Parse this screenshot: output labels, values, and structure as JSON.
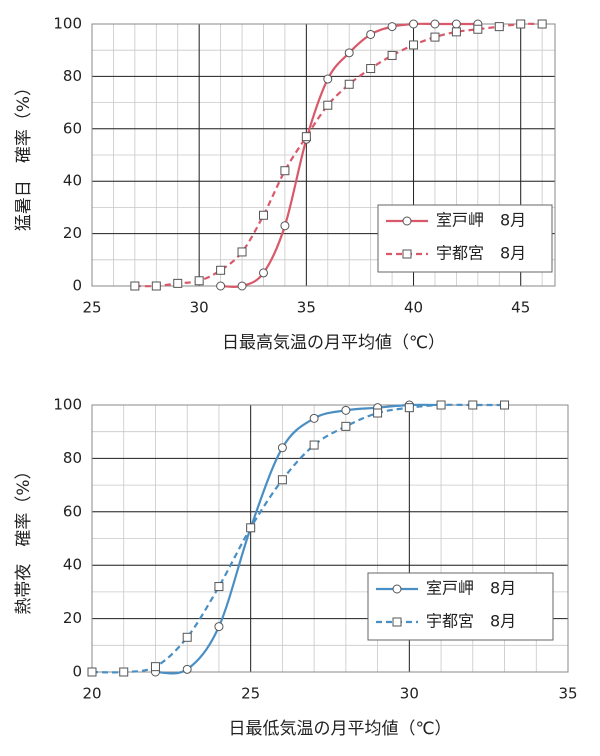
{
  "chart_data": [
    {
      "type": "line",
      "y_label": "猛暑日　確率（%）",
      "x_label": "日最高気温の月平均値（℃）",
      "xlim": [
        25,
        46.6
      ],
      "xticks": [
        25,
        30,
        35,
        40,
        45
      ],
      "ylim": [
        0,
        100
      ],
      "yticks": [
        0,
        20,
        40,
        60,
        80,
        100
      ],
      "grid": true,
      "legend": "lower right",
      "series": [
        {
          "name": "室戸岬　8月",
          "color": "#d9596a",
          "marker": "circle",
          "dash": false,
          "x": [
            31,
            32,
            33,
            34,
            35,
            36,
            37,
            38,
            39,
            40,
            41,
            42,
            43
          ],
          "values": [
            0,
            0,
            5,
            23,
            56,
            79,
            89,
            96,
            99,
            100,
            100,
            100,
            100
          ]
        },
        {
          "name": "宇都宮　8月",
          "color": "#d9596a",
          "marker": "square",
          "dash": true,
          "x": [
            27,
            28,
            29,
            30,
            31,
            32,
            33,
            34,
            35,
            36,
            37,
            38,
            39,
            40,
            41,
            42,
            43,
            44,
            45,
            46
          ],
          "values": [
            0,
            0,
            1,
            2,
            6,
            13,
            27,
            44,
            57,
            69,
            77,
            83,
            88,
            92,
            95,
            97,
            98,
            99,
            100,
            100
          ]
        }
      ]
    },
    {
      "type": "line",
      "y_label": "熱帯夜　確率（%）",
      "x_label": "日最低気温の月平均値（℃）",
      "xlim": [
        20,
        35
      ],
      "xticks": [
        20,
        25,
        30,
        35
      ],
      "ylim": [
        0,
        100
      ],
      "yticks": [
        0,
        20,
        40,
        60,
        80,
        100
      ],
      "grid": true,
      "legend": "lower right",
      "series": [
        {
          "name": "室戸岬　8月",
          "color": "#4a8fc4",
          "marker": "circle",
          "dash": false,
          "x": [
            22,
            23,
            24,
            25,
            26,
            27,
            28,
            29,
            30,
            31
          ],
          "values": [
            0,
            1,
            17,
            54,
            84,
            95,
            98,
            99,
            100,
            100
          ]
        },
        {
          "name": "宇都宮　8月",
          "color": "#4a8fc4",
          "marker": "square",
          "dash": true,
          "x": [
            20,
            21,
            22,
            23,
            24,
            25,
            26,
            27,
            28,
            29,
            30,
            31,
            32,
            33
          ],
          "values": [
            0,
            0,
            2,
            13,
            32,
            54,
            72,
            85,
            92,
            97,
            99,
            100,
            100,
            100
          ]
        }
      ]
    }
  ]
}
